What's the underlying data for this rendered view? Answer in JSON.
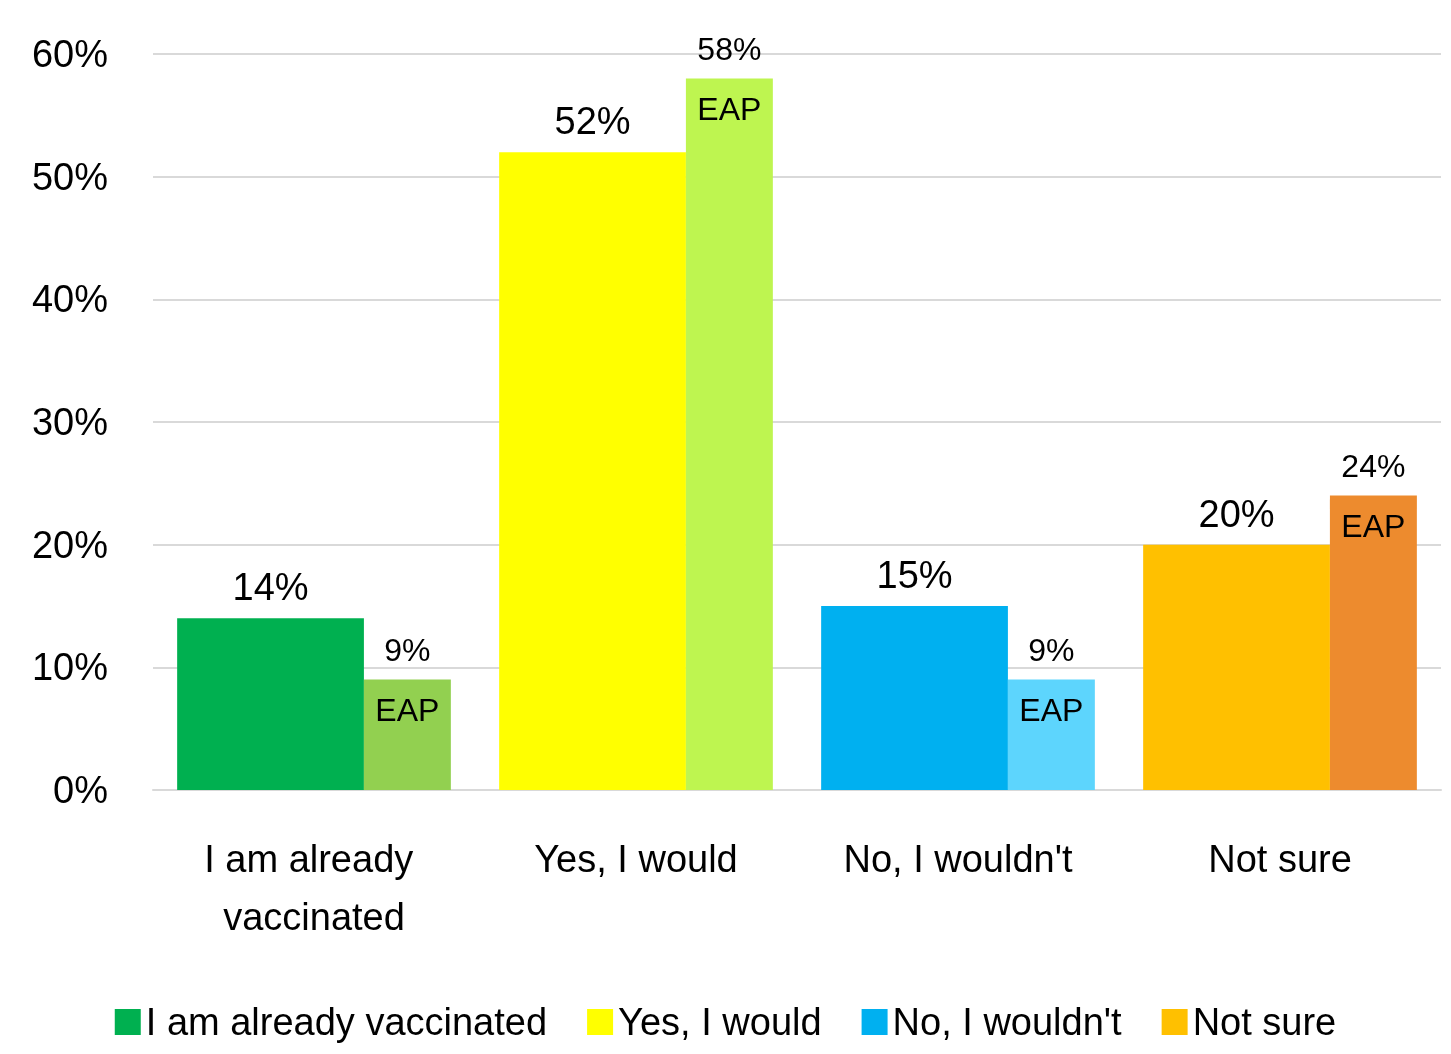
{
  "chart_data": {
    "type": "bar",
    "categories": [
      "I am already vaccinated",
      "Yes, I would",
      "No, I wouldn't",
      "Not sure"
    ],
    "ylim": [
      0,
      60
    ],
    "yticks": [
      {
        "value": 0,
        "label": "0%"
      },
      {
        "value": 10,
        "label": "10%"
      },
      {
        "value": 20,
        "label": "20%"
      },
      {
        "value": 30,
        "label": "30%"
      },
      {
        "value": 40,
        "label": "40%"
      },
      {
        "value": 50,
        "label": "50%"
      },
      {
        "value": 60,
        "label": "60%"
      }
    ],
    "grid": "y",
    "legend": "bottom",
    "series": [
      {
        "name": "I am already vaccinated",
        "color": "#00b050",
        "values": [
          14,
          null,
          null,
          null
        ],
        "value_labels": [
          "14%",
          null,
          null,
          null
        ]
      },
      {
        "name": "Yes, I would",
        "color": "#ffff00",
        "values": [
          null,
          52,
          null,
          null
        ],
        "value_labels": [
          null,
          "52%",
          null,
          null
        ]
      },
      {
        "name": "No, I wouldn't",
        "color": "#00b0f0",
        "values": [
          null,
          null,
          15,
          null
        ],
        "value_labels": [
          null,
          null,
          "15%",
          null
        ]
      },
      {
        "name": "Not sure",
        "color": "#ffc000",
        "values": [
          null,
          null,
          null,
          20
        ],
        "value_labels": [
          null,
          null,
          null,
          "20%"
        ]
      },
      {
        "name": "EAP",
        "colors": [
          "#92d050",
          "#bef550",
          "#5dd5fd",
          "#ed8b2e"
        ],
        "values": [
          9,
          58,
          9,
          24
        ],
        "value_labels": [
          "9%",
          "58%",
          "9%",
          "24%"
        ]
      }
    ]
  }
}
